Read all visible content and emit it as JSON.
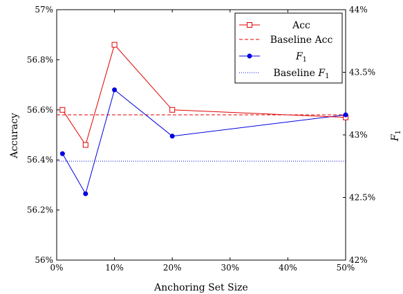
{
  "chart_data": {
    "type": "line",
    "x": [
      1,
      5,
      10,
      20,
      50
    ],
    "xlabel": "Anchoring Set Size",
    "xticks": [
      "0%",
      "10%",
      "20%",
      "30%",
      "40%",
      "50%"
    ],
    "xlim": [
      0,
      50
    ],
    "ylabel_left": "Accuracy",
    "yticks_left": [
      "56%",
      "56.2%",
      "56.4%",
      "56.6%",
      "56.8%",
      "57%"
    ],
    "ylim_left": [
      56.0,
      57.0
    ],
    "ylabel_right": "F1",
    "yticks_right": [
      "42%",
      "42.5%",
      "43%",
      "43.5%",
      "44%"
    ],
    "ylim_right": [
      42.0,
      44.0
    ],
    "grid": false,
    "legend_position": "top-right",
    "series": [
      {
        "name": "Acc",
        "axis": "left",
        "style": "solid-square",
        "color": "#e00000",
        "values": [
          56.6,
          56.46,
          56.86,
          56.6,
          56.57
        ]
      },
      {
        "name": "Baseline Acc",
        "axis": "left",
        "style": "dashed",
        "color": "#e00000",
        "value": 56.58
      },
      {
        "name": "F1",
        "axis": "right",
        "style": "solid-circle",
        "color": "#0000e0",
        "values": [
          42.85,
          42.53,
          43.36,
          42.99,
          43.16
        ]
      },
      {
        "name": "Baseline F1",
        "axis": "right",
        "style": "dotted",
        "color": "#0000e0",
        "value": 42.79
      }
    ]
  }
}
